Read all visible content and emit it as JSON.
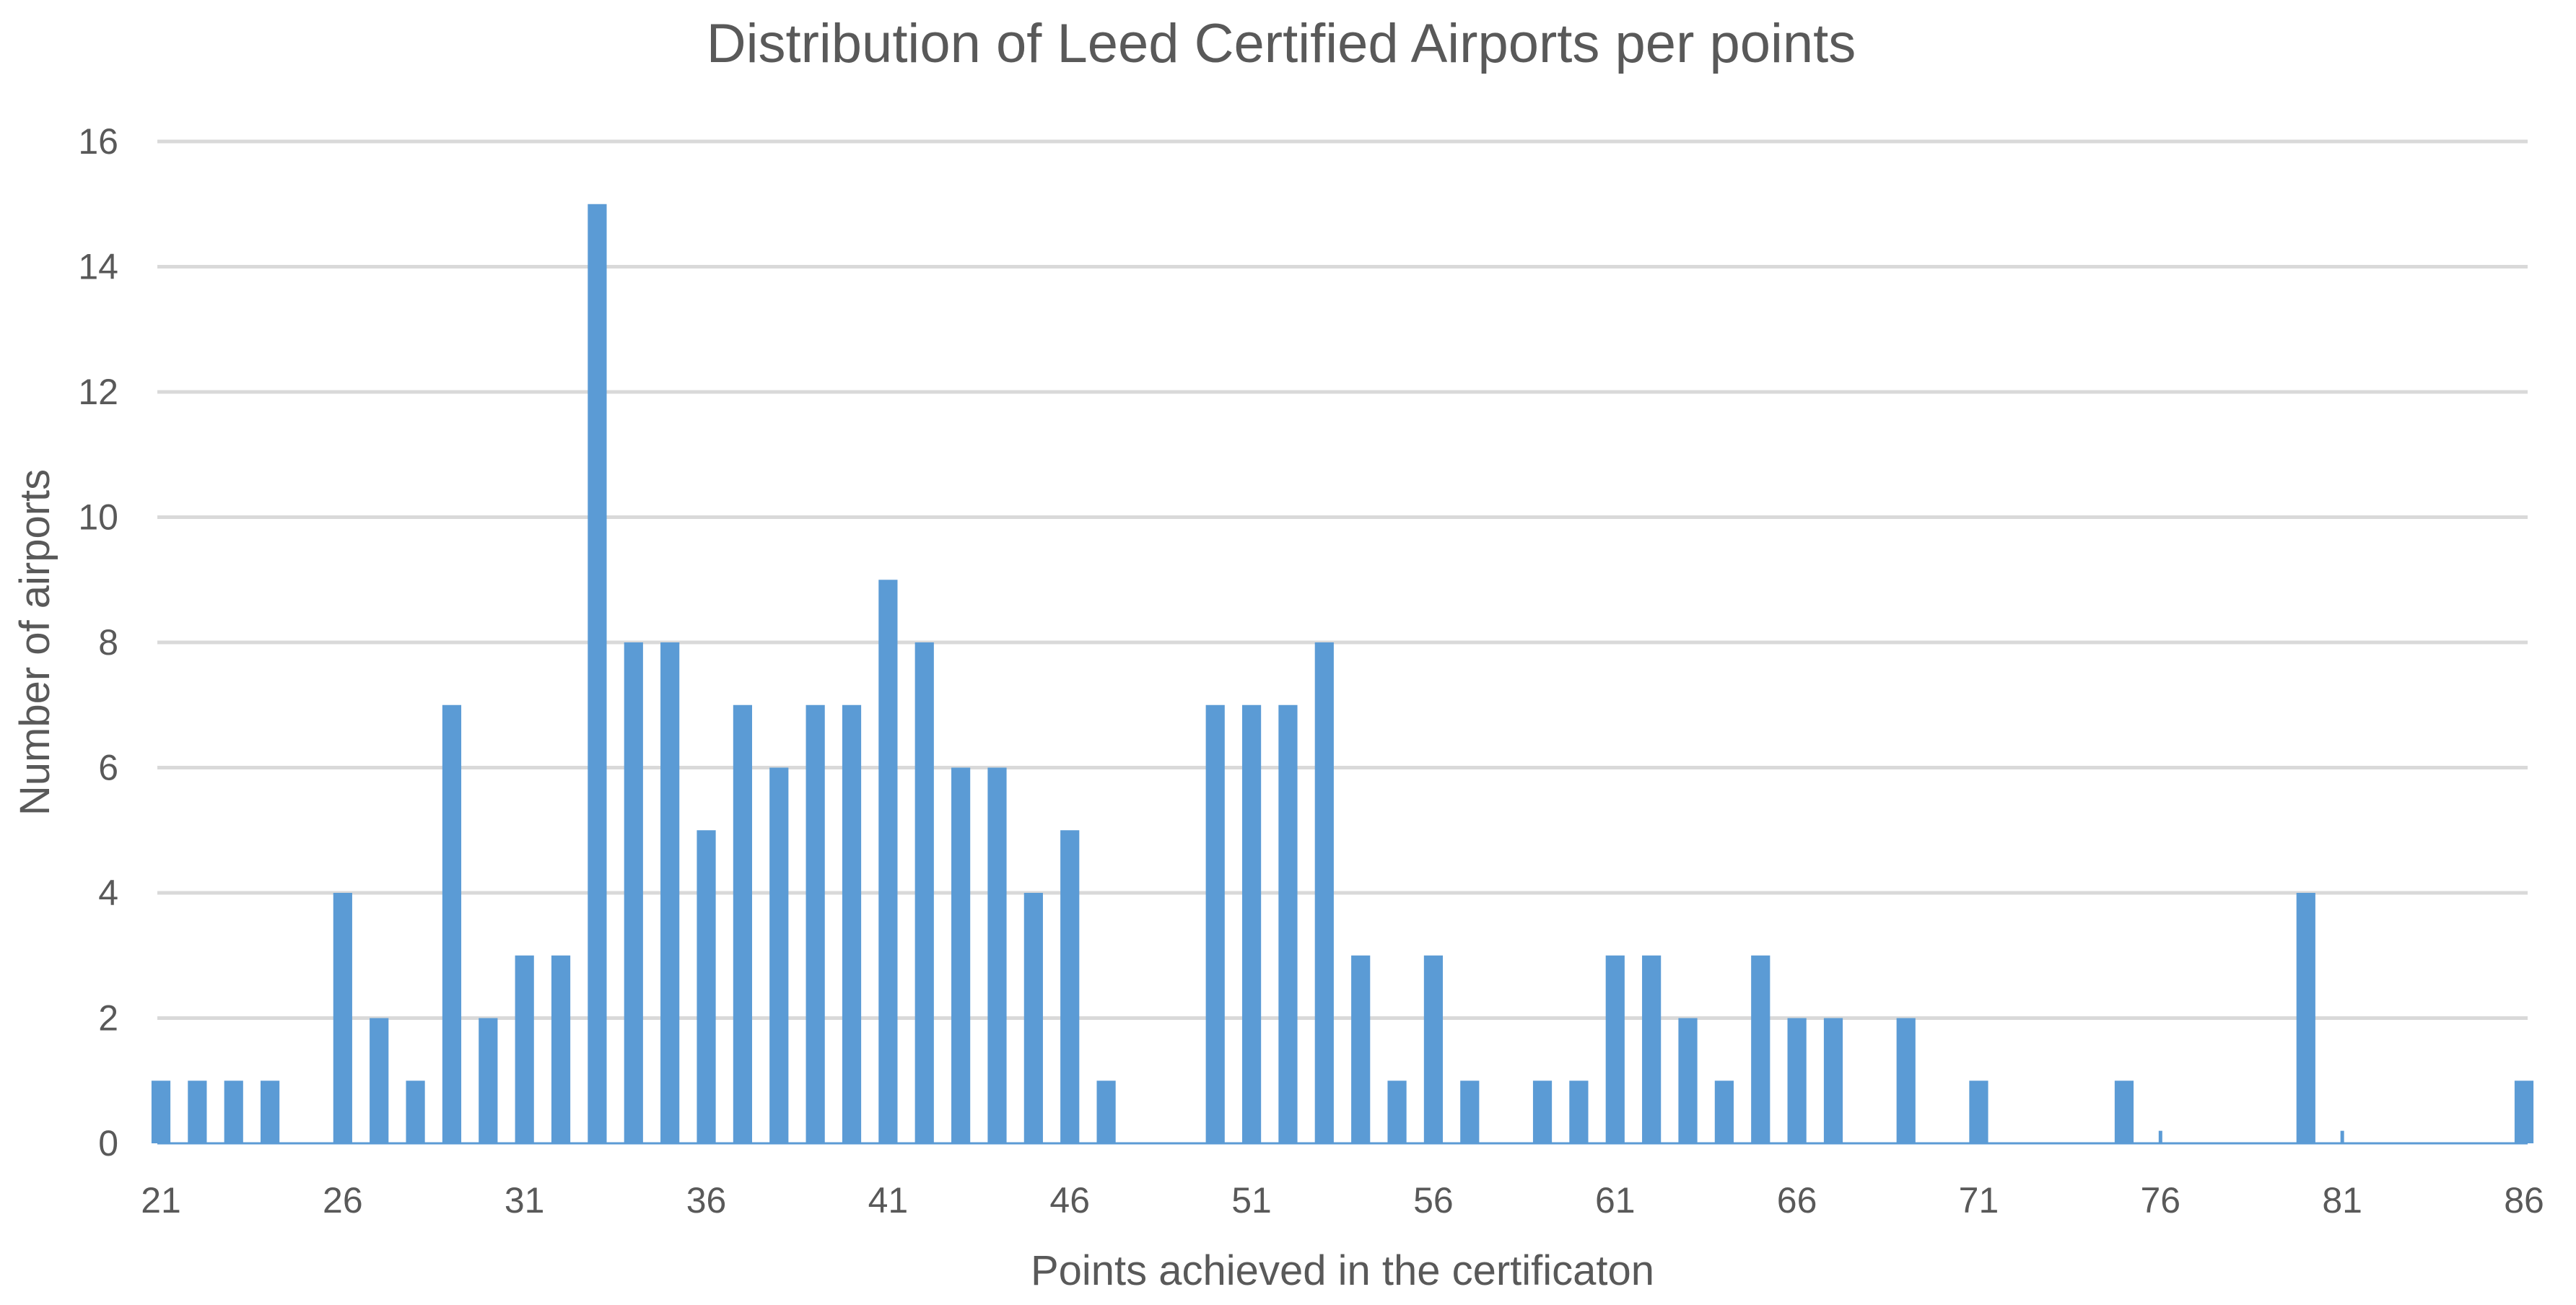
{
  "chart_data": {
    "type": "bar",
    "title": "Distribution of Leed Certified Airports per points",
    "xlabel": "Points achieved in the certificaton",
    "ylabel": "Number of  airports",
    "ylim": [
      0,
      16
    ],
    "yticks": [
      0,
      2,
      4,
      6,
      8,
      10,
      12,
      14,
      16
    ],
    "xrange": [
      21,
      86
    ],
    "xtick_labels": [
      "21",
      "26",
      "31",
      "36",
      "41",
      "46",
      "51",
      "56",
      "61",
      "66",
      "71",
      "76",
      "81",
      "86"
    ],
    "grid": true,
    "bar_color": "#5b9bd5",
    "grid_color": "#d9d9d9",
    "series": [
      {
        "name": "Number of airports",
        "x": [
          21,
          22,
          23,
          24,
          25,
          26,
          27,
          28,
          29,
          30,
          31,
          32,
          33,
          34,
          35,
          36,
          37,
          38,
          39,
          40,
          41,
          42,
          43,
          44,
          45,
          46,
          47,
          48,
          49,
          50,
          51,
          52,
          53,
          54,
          55,
          56,
          57,
          58,
          59,
          60,
          61,
          62,
          63,
          64,
          65,
          66,
          67,
          68,
          69,
          70,
          71,
          72,
          73,
          74,
          75,
          76,
          77,
          78,
          79,
          80,
          81,
          82,
          83,
          84,
          85,
          86
        ],
        "values": [
          1,
          1,
          1,
          1,
          0,
          4,
          2,
          1,
          7,
          2,
          3,
          3,
          15,
          8,
          8,
          5,
          7,
          6,
          7,
          7,
          9,
          8,
          6,
          6,
          4,
          5,
          1,
          0,
          0,
          7,
          7,
          7,
          8,
          3,
          1,
          3,
          1,
          0,
          1,
          1,
          3,
          3,
          2,
          1,
          3,
          2,
          2,
          0,
          2,
          0,
          1,
          0,
          0,
          0,
          1,
          0.2,
          0,
          0,
          0,
          4,
          0.2,
          0,
          0,
          0,
          0,
          1
        ]
      }
    ]
  }
}
